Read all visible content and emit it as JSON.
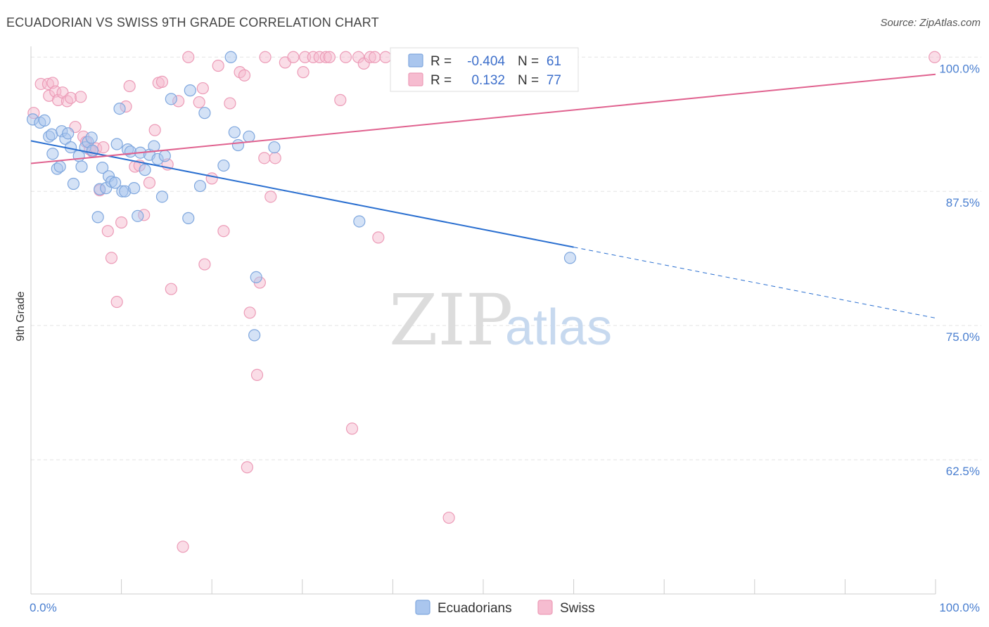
{
  "title": "ECUADORIAN VS SWISS 9TH GRADE CORRELATION CHART",
  "source": "Source: ZipAtlas.com",
  "watermark": {
    "zip": "ZIP",
    "atlas": "atlas"
  },
  "colors": {
    "ecuadorians_fill": "#aac6ee",
    "ecuadorians_stroke": "#7fa7de",
    "ecuadorians_line": "#2a6fd0",
    "swiss_fill": "#f6bcd0",
    "swiss_stroke": "#ec9bb7",
    "swiss_line": "#e0628f",
    "tick_label": "#4a7fd0",
    "grid": "#e4e4e4"
  },
  "legend": {
    "rows": [
      {
        "r_label": "R =",
        "r_value": "-0.404",
        "n_label": "N =",
        "n_value": "61"
      },
      {
        "r_label": "R =",
        "r_value": "0.132",
        "n_label": "N =",
        "n_value": "77"
      }
    ]
  },
  "bottom_legend": [
    "Ecuadorians",
    "Swiss"
  ],
  "chart_data": {
    "type": "scatter",
    "title": "ECUADORIAN VS SWISS 9TH GRADE CORRELATION CHART",
    "xlabel": "",
    "ylabel": "9th Grade",
    "xlim": [
      0,
      100
    ],
    "ylim": [
      50,
      101
    ],
    "x_tick_labels": [
      "0.0%",
      "100.0%"
    ],
    "y_ticks": [
      62.5,
      75.0,
      87.5,
      100.0
    ],
    "y_tick_labels": [
      "62.5%",
      "75.0%",
      "87.5%",
      "100.0%"
    ],
    "grid": true,
    "legend_position": "top-center",
    "series": [
      {
        "name": "Ecuadorians",
        "r": -0.404,
        "n": 61,
        "trend": {
          "x": [
            0,
            60,
            100
          ],
          "y": [
            92.2,
            82.3,
            75.7
          ],
          "solid_until": 60
        },
        "points": [
          [
            0.2,
            94.2
          ],
          [
            1,
            93.9
          ],
          [
            1.5,
            94.1
          ],
          [
            2,
            92.6
          ],
          [
            2.3,
            92.8
          ],
          [
            2.4,
            91
          ],
          [
            2.9,
            89.6
          ],
          [
            3.2,
            89.8
          ],
          [
            3.4,
            93.1
          ],
          [
            3.8,
            92.4
          ],
          [
            4.1,
            92.9
          ],
          [
            4.4,
            91.6
          ],
          [
            4.7,
            88.2
          ],
          [
            5.3,
            90.8
          ],
          [
            5.6,
            89.8
          ],
          [
            6,
            91.6
          ],
          [
            6.3,
            92.1
          ],
          [
            6.7,
            92.5
          ],
          [
            6.8,
            91.3
          ],
          [
            7.4,
            85.1
          ],
          [
            7.6,
            87.7
          ],
          [
            7.9,
            89.7
          ],
          [
            8.3,
            87.8
          ],
          [
            8.6,
            88.9
          ],
          [
            8.9,
            88.4
          ],
          [
            9.3,
            88.3
          ],
          [
            9.5,
            91.9
          ],
          [
            9.8,
            95.2
          ],
          [
            10.1,
            87.5
          ],
          [
            10.4,
            87.5
          ],
          [
            10.7,
            91.4
          ],
          [
            11,
            91.2
          ],
          [
            11.4,
            87.8
          ],
          [
            11.8,
            85.2
          ],
          [
            12.1,
            91.1
          ],
          [
            12.6,
            89.5
          ],
          [
            13.1,
            90.9
          ],
          [
            13.6,
            91.7
          ],
          [
            14,
            90.5
          ],
          [
            14.5,
            87
          ],
          [
            14.8,
            90.8
          ],
          [
            15.5,
            96.1
          ],
          [
            17.4,
            85
          ],
          [
            17.6,
            96.9
          ],
          [
            18.7,
            88
          ],
          [
            19.2,
            94.8
          ],
          [
            21.3,
            89.9
          ],
          [
            22.5,
            93
          ],
          [
            22.9,
            91.8
          ],
          [
            22.1,
            100
          ],
          [
            24.1,
            92.6
          ],
          [
            24.9,
            79.5
          ],
          [
            24.7,
            74.1
          ],
          [
            26.9,
            91.6
          ],
          [
            36.3,
            84.7
          ],
          [
            41.5,
            100
          ],
          [
            59.6,
            81.3
          ],
          [
            44,
            100
          ],
          [
            46,
            100
          ],
          [
            48,
            100
          ],
          [
            50,
            100
          ]
        ]
      },
      {
        "name": "Swiss",
        "r": 0.132,
        "n": 77,
        "trend": {
          "x": [
            0,
            100
          ],
          "y": [
            90.1,
            98.4
          ],
          "solid_until": 100
        },
        "points": [
          [
            0.3,
            94.8
          ],
          [
            1.1,
            97.5
          ],
          [
            1.9,
            97.5
          ],
          [
            2,
            96.4
          ],
          [
            2.4,
            97.6
          ],
          [
            2.7,
            96.8
          ],
          [
            3,
            96
          ],
          [
            3.5,
            96.7
          ],
          [
            4,
            95.9
          ],
          [
            4.4,
            96.2
          ],
          [
            4.9,
            93.5
          ],
          [
            5.5,
            96.3
          ],
          [
            5.8,
            92.6
          ],
          [
            6.1,
            92.1
          ],
          [
            6.5,
            91.4
          ],
          [
            6.8,
            91.2
          ],
          [
            7.2,
            91.5
          ],
          [
            7.6,
            87.6
          ],
          [
            8,
            91.6
          ],
          [
            8.5,
            83.8
          ],
          [
            8.9,
            81.3
          ],
          [
            9.5,
            77.2
          ],
          [
            10,
            84.6
          ],
          [
            10.5,
            95.4
          ],
          [
            10.9,
            97.3
          ],
          [
            11.5,
            89.8
          ],
          [
            12,
            89.9
          ],
          [
            12.5,
            85.3
          ],
          [
            13.1,
            88.3
          ],
          [
            13.7,
            93.2
          ],
          [
            14.1,
            97.6
          ],
          [
            14.5,
            97.7
          ],
          [
            15.1,
            90
          ],
          [
            15.5,
            78.4
          ],
          [
            16.3,
            95.9
          ],
          [
            16.8,
            54.4
          ],
          [
            17.4,
            100
          ],
          [
            18.6,
            95.8
          ],
          [
            19,
            97.1
          ],
          [
            19.2,
            80.7
          ],
          [
            20,
            88.7
          ],
          [
            20.7,
            99.2
          ],
          [
            21.3,
            83.8
          ],
          [
            22,
            95.7
          ],
          [
            23.1,
            98.6
          ],
          [
            23.6,
            98.3
          ],
          [
            23.9,
            61.8
          ],
          [
            24.2,
            76.2
          ],
          [
            25,
            70.4
          ],
          [
            25.3,
            79
          ],
          [
            25.8,
            90.6
          ],
          [
            25.9,
            100
          ],
          [
            26.5,
            87
          ],
          [
            27,
            90.6
          ],
          [
            28.1,
            99.5
          ],
          [
            29,
            100
          ],
          [
            30.1,
            98.6
          ],
          [
            30.3,
            100
          ],
          [
            31.2,
            100
          ],
          [
            31.9,
            100
          ],
          [
            32.6,
            100
          ],
          [
            33,
            100
          ],
          [
            34.2,
            96
          ],
          [
            34.8,
            100
          ],
          [
            35.5,
            65.4
          ],
          [
            36.2,
            100
          ],
          [
            36.8,
            99.4
          ],
          [
            37.5,
            100
          ],
          [
            38,
            100
          ],
          [
            38.4,
            83.2
          ],
          [
            39.2,
            100
          ],
          [
            40.5,
            100
          ],
          [
            42,
            100
          ],
          [
            45.6,
            100
          ],
          [
            46.2,
            57.1
          ],
          [
            50.5,
            100
          ],
          [
            99.9,
            100
          ]
        ]
      }
    ]
  }
}
